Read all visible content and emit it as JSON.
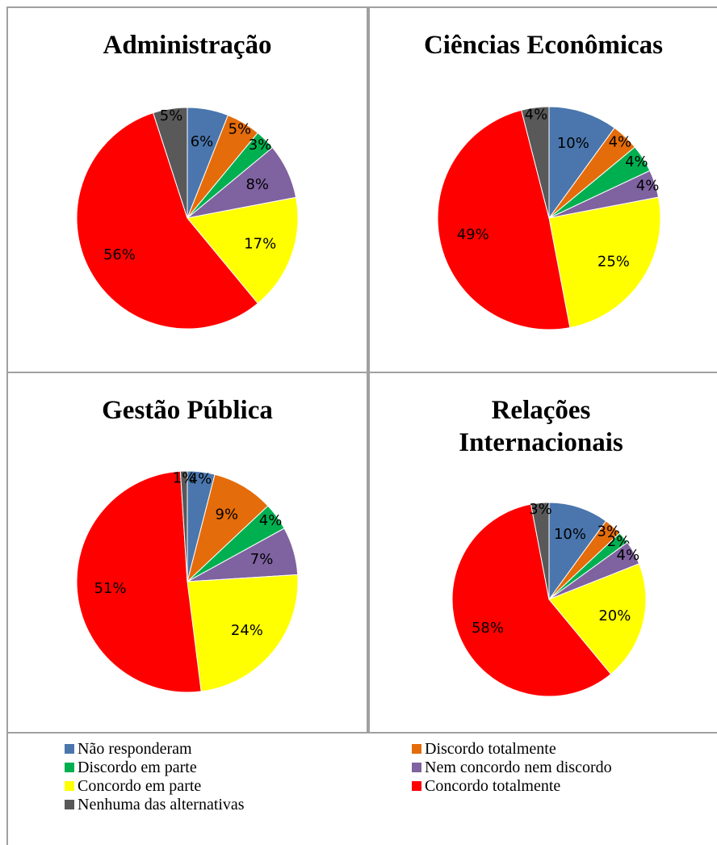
{
  "legend": {
    "categories": [
      "Não responderam",
      "Discordo totalmente",
      "Discordo em parte",
      "Nem concordo nem discordo",
      "Concordo em parte",
      "Concordo totalmente",
      "Nenhuma das alternativas"
    ],
    "colors": [
      "#4a76ad",
      "#e46c0a",
      "#00b050",
      "#7f62a0",
      "#ffff00",
      "#ff0000",
      "#595959"
    ]
  },
  "chart_data": [
    {
      "type": "pie",
      "title": "Administração",
      "values": [
        6,
        5,
        3,
        8,
        17,
        56,
        5
      ],
      "value_labels": [
        "6%",
        "5%",
        "3%",
        "8%",
        "17%",
        "56%",
        "5%"
      ]
    },
    {
      "type": "pie",
      "title": "Ciências Econômicas",
      "values": [
        10,
        4,
        4,
        4,
        25,
        49,
        4
      ],
      "value_labels": [
        "10%",
        "4%",
        "4%",
        "4%",
        "25%",
        "49%",
        "4%"
      ]
    },
    {
      "type": "pie",
      "title": "Gestão Pública",
      "values": [
        4,
        9,
        4,
        7,
        24,
        51,
        1
      ],
      "value_labels": [
        "4%",
        "9%",
        "4%",
        "7%",
        "24%",
        "51%",
        "1%"
      ]
    },
    {
      "type": "pie",
      "title": "Relações Internacionais",
      "values": [
        10,
        3,
        2,
        4,
        20,
        58,
        3
      ],
      "value_labels": [
        "10%",
        "3%",
        "2%",
        "4%",
        "20%",
        "58%",
        "3%"
      ]
    }
  ]
}
